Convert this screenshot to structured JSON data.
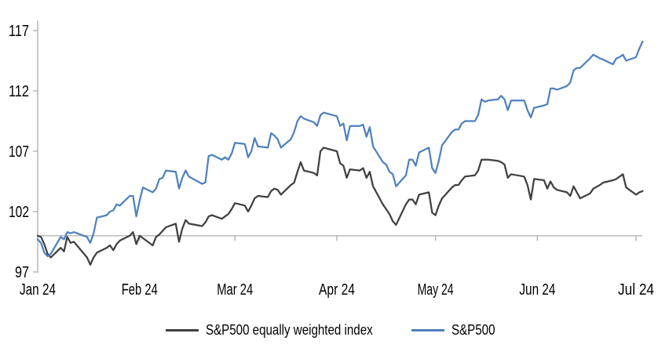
{
  "chart_data": {
    "type": "line",
    "title": "",
    "legend_position": "bottom",
    "grid": "off",
    "axis_color": "#a6a6a6",
    "text_color": "#000000",
    "baseline_value": 100,
    "ylim": [
      97,
      117.5
    ],
    "y_ticks": [
      97,
      102,
      107,
      112,
      117
    ],
    "x_tick_dates": [
      "01-01",
      "02-01",
      "03-01",
      "04-01",
      "05-01",
      "06-01",
      "07-01"
    ],
    "x_tick_labels": [
      "Jan 24",
      "Feb 24",
      "Mar 24",
      "Apr 24",
      "May 24",
      "Jun 24",
      "Jul 24"
    ],
    "dates": [
      "01-01",
      "01-02",
      "01-03",
      "01-04",
      "01-05",
      "01-08",
      "01-09",
      "01-10",
      "01-11",
      "01-12",
      "01-16",
      "01-17",
      "01-18",
      "01-19",
      "01-22",
      "01-23",
      "01-24",
      "01-25",
      "01-26",
      "01-29",
      "01-30",
      "01-31",
      "02-01",
      "02-02",
      "02-05",
      "02-06",
      "02-07",
      "02-08",
      "02-09",
      "02-12",
      "02-13",
      "02-14",
      "02-15",
      "02-16",
      "02-20",
      "02-21",
      "02-22",
      "02-23",
      "02-26",
      "02-27",
      "02-28",
      "02-29",
      "03-01",
      "03-04",
      "03-05",
      "03-06",
      "03-07",
      "03-08",
      "03-11",
      "03-12",
      "03-13",
      "03-14",
      "03-15",
      "03-18",
      "03-19",
      "03-20",
      "03-21",
      "03-22",
      "03-25",
      "03-26",
      "03-27",
      "03-28",
      "04-01",
      "04-02",
      "04-03",
      "04-04",
      "04-05",
      "04-08",
      "04-09",
      "04-10",
      "04-11",
      "04-12",
      "04-15",
      "04-16",
      "04-17",
      "04-18",
      "04-19",
      "04-22",
      "04-23",
      "04-24",
      "04-25",
      "04-26",
      "04-29",
      "04-30",
      "05-01",
      "05-02",
      "05-03",
      "05-06",
      "05-07",
      "05-08",
      "05-09",
      "05-10",
      "05-13",
      "05-14",
      "05-15",
      "05-16",
      "05-17",
      "05-20",
      "05-21",
      "05-22",
      "05-23",
      "05-24",
      "05-28",
      "05-29",
      "05-30",
      "05-31",
      "06-03",
      "06-04",
      "06-05",
      "06-06",
      "06-07",
      "06-10",
      "06-11",
      "06-12",
      "06-13",
      "06-14",
      "06-17",
      "06-18",
      "06-20",
      "06-21",
      "06-24",
      "06-25",
      "06-26",
      "06-27",
      "06-28",
      "07-01",
      "07-02",
      "07-03"
    ],
    "series": [
      {
        "name": "S&P500 equally weighted index",
        "color": "#404040",
        "values": [
          100.0,
          99.9,
          99.3,
          98.5,
          98.2,
          99.0,
          98.7,
          99.9,
          99.4,
          99.5,
          98.2,
          97.6,
          98.2,
          98.6,
          99.0,
          99.2,
          98.8,
          99.3,
          99.6,
          100.0,
          100.3,
          99.3,
          100.0,
          99.8,
          99.2,
          99.9,
          100.1,
          100.4,
          100.7,
          101.0,
          99.5,
          100.6,
          101.3,
          101.0,
          100.8,
          101.1,
          101.6,
          101.7,
          101.4,
          101.6,
          101.8,
          102.2,
          102.7,
          102.5,
          102.0,
          102.5,
          103.1,
          103.3,
          103.2,
          103.7,
          103.9,
          103.8,
          103.4,
          104.2,
          104.4,
          105.3,
          106.1,
          105.4,
          105.2,
          105.0,
          107.0,
          107.3,
          107.0,
          106.0,
          105.8,
          104.8,
          105.5,
          105.4,
          105.6,
          104.8,
          105.3,
          104.1,
          102.6,
          102.2,
          101.8,
          101.2,
          100.9,
          102.6,
          103.0,
          103.0,
          102.6,
          103.4,
          103.6,
          101.9,
          101.7,
          102.5,
          103.1,
          104.0,
          104.2,
          104.2,
          104.6,
          104.9,
          105.0,
          105.4,
          106.3,
          106.3,
          106.3,
          106.2,
          106.1,
          105.9,
          104.8,
          105.1,
          104.9,
          104.2,
          103.0,
          104.7,
          104.6,
          103.9,
          104.5,
          104.0,
          103.8,
          103.6,
          103.3,
          104.1,
          103.6,
          103.1,
          103.5,
          103.9,
          104.2,
          104.4,
          104.6,
          104.7,
          104.9,
          105.1,
          104.0,
          103.4,
          103.6,
          103.7
        ]
      },
      {
        "name": "S&P500",
        "color": "#4f81bd",
        "values": [
          99.7,
          99.4,
          98.6,
          98.3,
          98.5,
          99.9,
          99.7,
          100.3,
          100.2,
          100.3,
          99.9,
          99.4,
          100.2,
          101.5,
          101.7,
          102.0,
          102.1,
          102.6,
          102.5,
          103.3,
          103.3,
          101.6,
          102.9,
          104.0,
          103.6,
          103.9,
          104.7,
          104.8,
          105.4,
          105.3,
          103.9,
          104.8,
          105.4,
          104.9,
          104.3,
          104.4,
          106.6,
          106.7,
          106.3,
          106.5,
          106.3,
          106.8,
          107.7,
          107.6,
          106.5,
          107.0,
          108.1,
          107.4,
          107.3,
          108.5,
          108.3,
          108.0,
          107.3,
          108.0,
          108.6,
          109.5,
          109.9,
          109.7,
          109.4,
          109.1,
          110.0,
          110.2,
          109.9,
          109.1,
          109.3,
          107.9,
          109.1,
          109.1,
          109.2,
          108.2,
          109.0,
          107.4,
          106.1,
          105.9,
          105.3,
          105.1,
          104.1,
          105.0,
          106.3,
          106.3,
          105.8,
          106.9,
          107.3,
          105.6,
          105.2,
          106.2,
          107.5,
          108.6,
          108.8,
          108.8,
          109.3,
          109.5,
          109.5,
          110.0,
          111.3,
          111.1,
          111.2,
          111.3,
          111.6,
          111.3,
          110.4,
          111.2,
          111.2,
          110.4,
          109.8,
          110.6,
          110.8,
          110.9,
          112.2,
          112.2,
          112.1,
          112.4,
          112.7,
          113.7,
          113.9,
          113.9,
          114.7,
          115.0,
          114.7,
          114.6,
          114.2,
          114.7,
          114.8,
          115.0,
          114.5,
          114.8,
          115.5,
          116.1
        ]
      }
    ]
  }
}
